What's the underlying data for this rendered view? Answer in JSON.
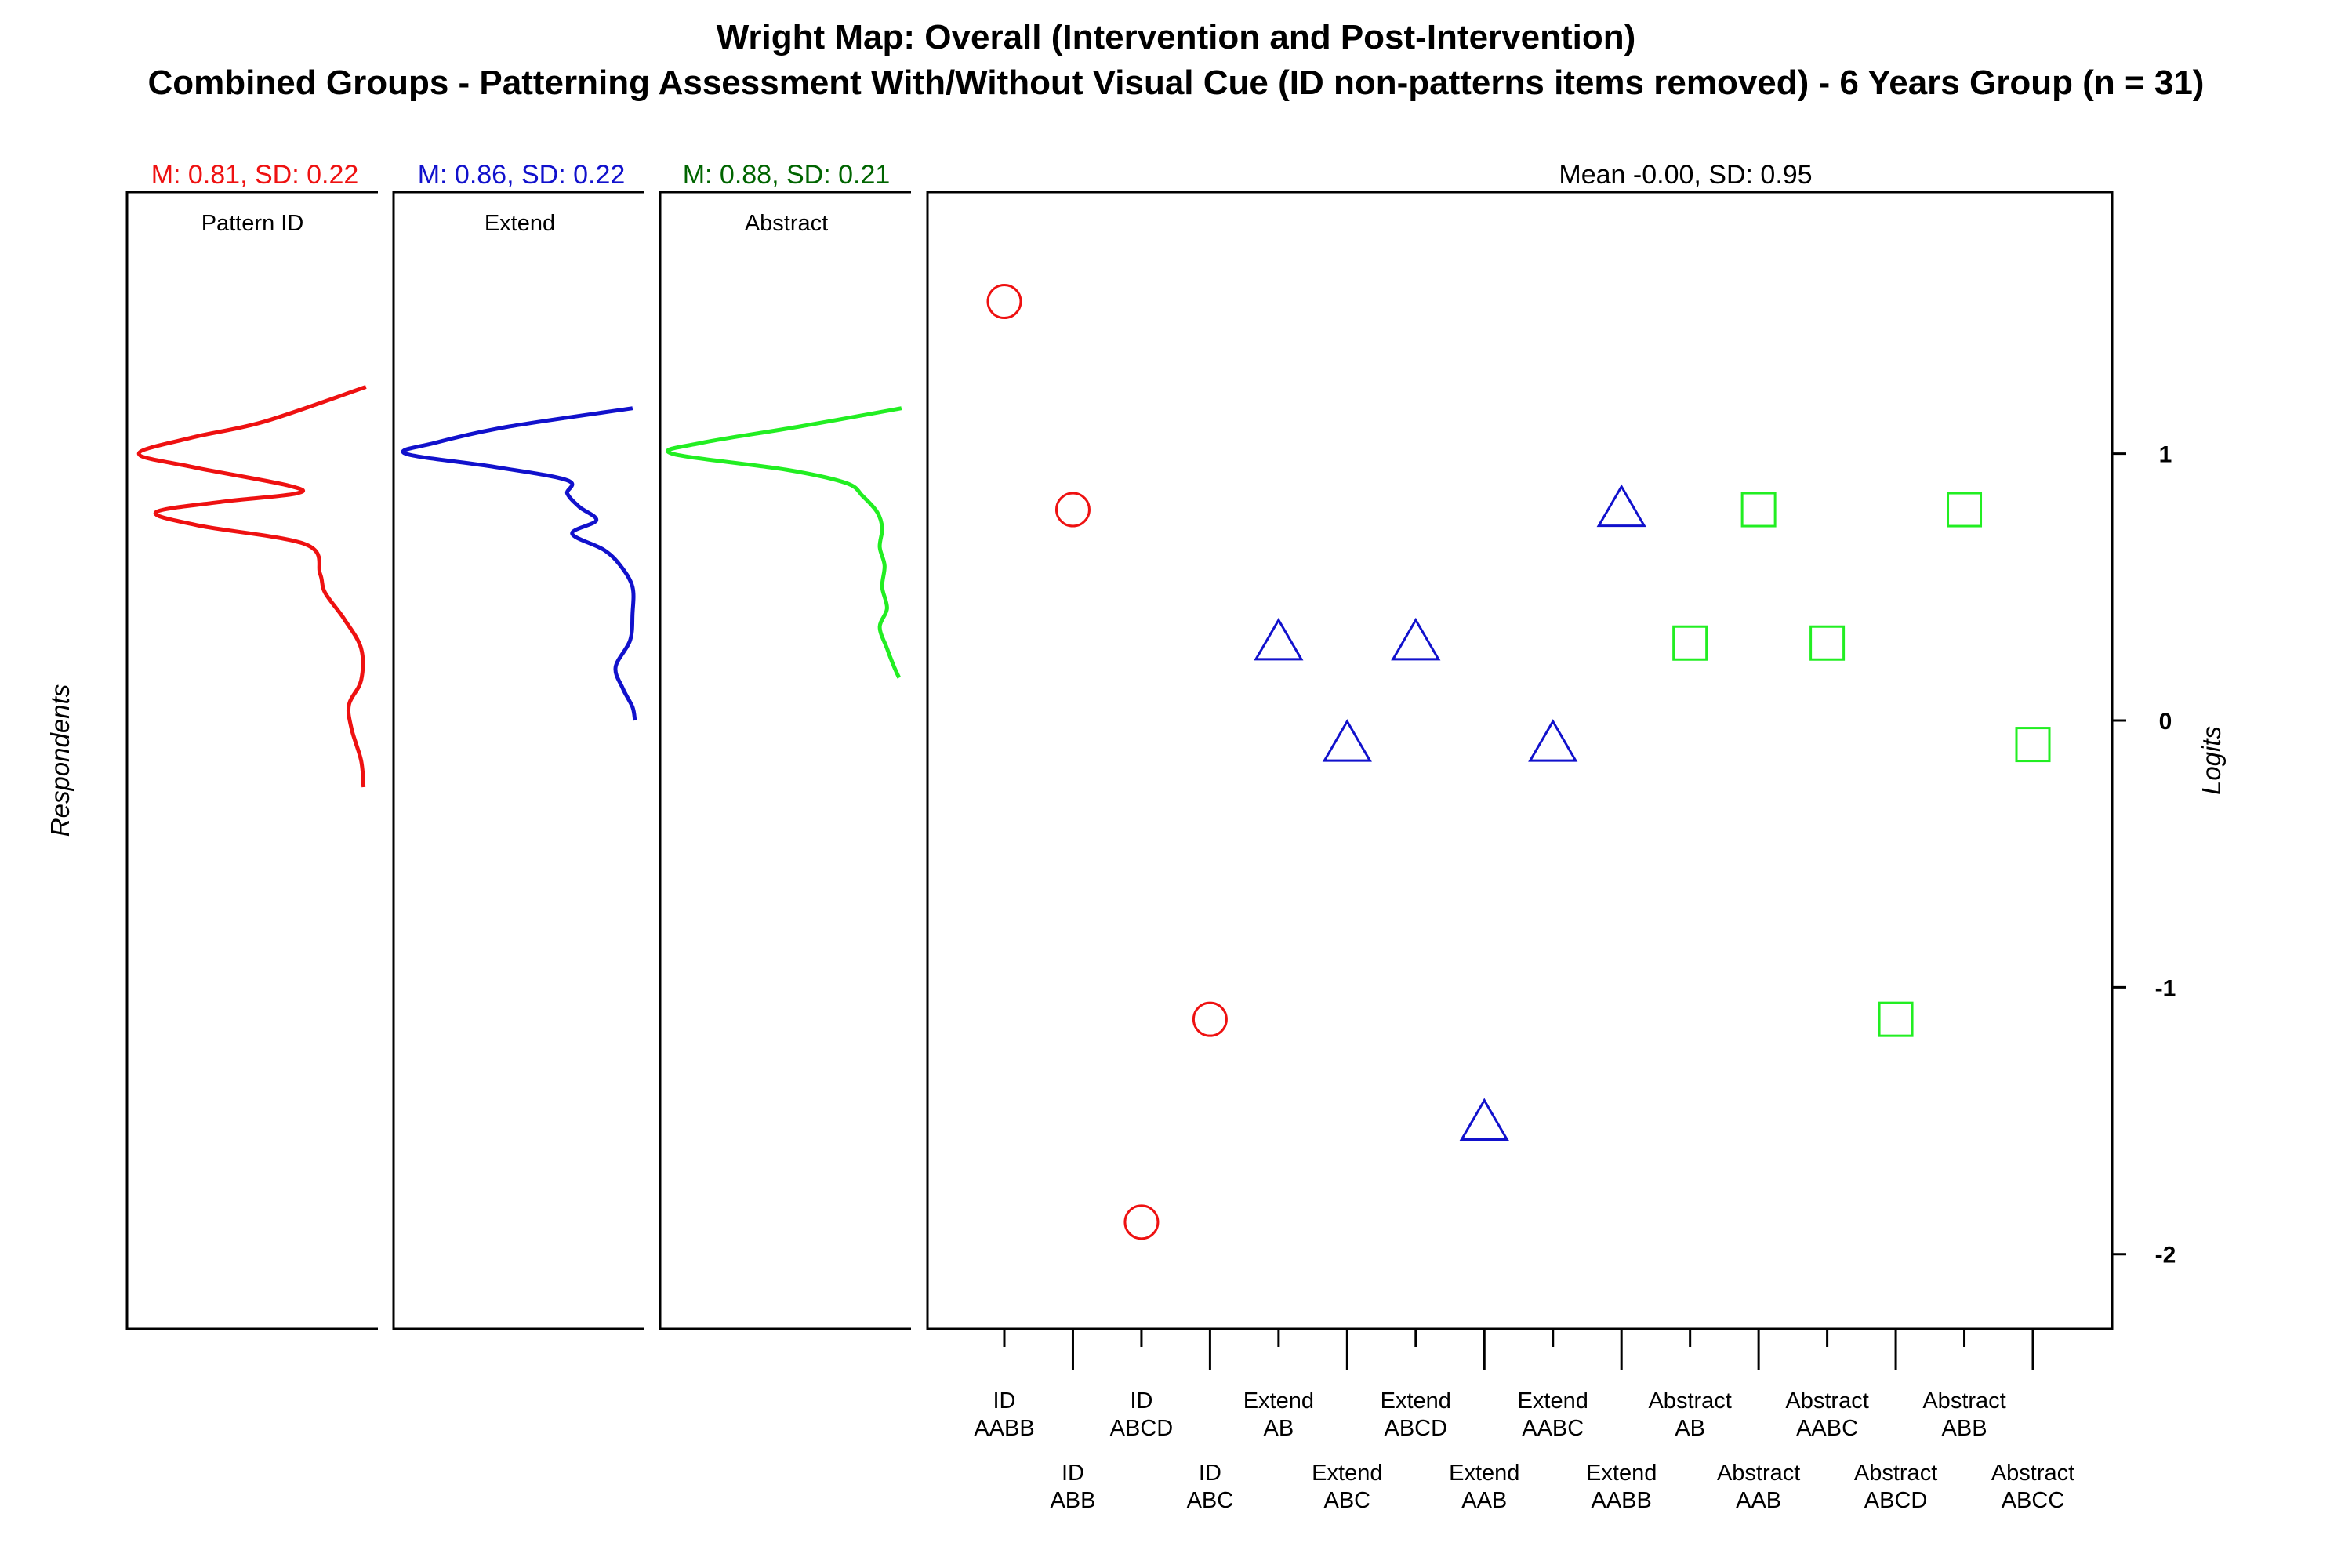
{
  "title_line1": "Wright Map: Overall (Intervention and Post-Intervention)",
  "title_line2": "Combined Groups - Patterning Assessment With/Without Visual Cue (ID non-patterns items removed) - 6 Years Group (n = 31)",
  "left_axis_title": "Respondents",
  "right_axis_title": "Logits",
  "item_panel_stat": "Mean -0.00, SD: 0.95",
  "colors": {
    "red": "#ee1111",
    "blue": "#1111cc",
    "green": "#22ee22",
    "darkgreen": "#006400"
  },
  "panels": [
    {
      "label": "Pattern ID",
      "stat": "M: 0.81, SD: 0.22",
      "color": "#ee1111",
      "stat_color": "#ee1111"
    },
    {
      "label": "Extend",
      "stat": "M: 0.86, SD: 0.22",
      "color": "#1111cc",
      "stat_color": "#1111cc"
    },
    {
      "label": "Abstract",
      "stat": "M: 0.88, SD: 0.21",
      "color": "#22ee22",
      "stat_color": "#006400"
    }
  ],
  "chart_data": {
    "type": "scatter",
    "ylabel": "Logits",
    "ylim": [
      -2.28,
      1.98
    ],
    "yticks": [
      -2,
      -1,
      0,
      1
    ],
    "items": [
      {
        "label": [
          "ID",
          "AABB"
        ],
        "group": "Pattern ID",
        "marker": "circle",
        "logit": 1.57
      },
      {
        "label": [
          "ID",
          "ABB"
        ],
        "group": "Pattern ID",
        "marker": "circle",
        "logit": 0.79
      },
      {
        "label": [
          "ID",
          "ABCD"
        ],
        "group": "Pattern ID",
        "marker": "circle",
        "logit": -1.88
      },
      {
        "label": [
          "ID",
          "ABC"
        ],
        "group": "Pattern ID",
        "marker": "circle",
        "logit": -1.12
      },
      {
        "label": [
          "Extend",
          "AB"
        ],
        "group": "Extend",
        "marker": "triangle",
        "logit": 0.3
      },
      {
        "label": [
          "Extend",
          "ABC"
        ],
        "group": "Extend",
        "marker": "triangle",
        "logit": -0.08
      },
      {
        "label": [
          "Extend",
          "ABCD"
        ],
        "group": "Extend",
        "marker": "triangle",
        "logit": 0.3
      },
      {
        "label": [
          "Extend",
          "AAB"
        ],
        "group": "Extend",
        "marker": "triangle",
        "logit": -1.5
      },
      {
        "label": [
          "Extend",
          "AABC"
        ],
        "group": "Extend",
        "marker": "triangle",
        "logit": -0.08
      },
      {
        "label": [
          "Extend",
          "AABB"
        ],
        "group": "Extend",
        "marker": "triangle",
        "logit": 0.8
      },
      {
        "label": [
          "Abstract",
          "AB"
        ],
        "group": "Abstract",
        "marker": "square",
        "logit": 0.29
      },
      {
        "label": [
          "Abstract",
          "AAB"
        ],
        "group": "Abstract",
        "marker": "square",
        "logit": 0.79
      },
      {
        "label": [
          "Abstract",
          "AABC"
        ],
        "group": "Abstract",
        "marker": "square",
        "logit": 0.29
      },
      {
        "label": [
          "Abstract",
          "ABCD"
        ],
        "group": "Abstract",
        "marker": "square",
        "logit": -1.12
      },
      {
        "label": [
          "Abstract",
          "ABB"
        ],
        "group": "Abstract",
        "marker": "square",
        "logit": 0.79
      },
      {
        "label": [
          "Abstract",
          "ABCC"
        ],
        "group": "Abstract",
        "marker": "square",
        "logit": -0.09
      }
    ],
    "person_densities": [
      {
        "group": "Pattern ID",
        "points": [
          [
            1.25,
            0.03
          ],
          [
            1.12,
            0.45
          ],
          [
            1.06,
            0.75
          ],
          [
            1.0,
            0.97
          ],
          [
            0.95,
            0.75
          ],
          [
            0.88,
            0.35
          ],
          [
            0.85,
            0.32
          ],
          [
            0.82,
            0.62
          ],
          [
            0.78,
            0.9
          ],
          [
            0.73,
            0.72
          ],
          [
            0.66,
            0.28
          ],
          [
            0.55,
            0.22
          ],
          [
            0.48,
            0.2
          ],
          [
            0.38,
            0.12
          ],
          [
            0.27,
            0.05
          ],
          [
            0.15,
            0.05
          ],
          [
            0.06,
            0.1
          ],
          [
            -0.03,
            0.09
          ],
          [
            -0.15,
            0.05
          ],
          [
            -0.25,
            0.04
          ]
        ]
      },
      {
        "group": "Extend",
        "points": [
          [
            1.17,
            0.03
          ],
          [
            1.1,
            0.55
          ],
          [
            1.04,
            0.85
          ],
          [
            1.0,
            0.97
          ],
          [
            0.95,
            0.6
          ],
          [
            0.9,
            0.3
          ],
          [
            0.85,
            0.3
          ],
          [
            0.8,
            0.25
          ],
          [
            0.75,
            0.18
          ],
          [
            0.7,
            0.28
          ],
          [
            0.64,
            0.15
          ],
          [
            0.58,
            0.08
          ],
          [
            0.5,
            0.03
          ],
          [
            0.4,
            0.03
          ],
          [
            0.3,
            0.04
          ],
          [
            0.2,
            0.1
          ],
          [
            0.12,
            0.07
          ],
          [
            0.05,
            0.03
          ],
          [
            0.0,
            0.02
          ]
        ]
      },
      {
        "group": "Abstract",
        "points": [
          [
            1.17,
            0.02
          ],
          [
            1.1,
            0.45
          ],
          [
            1.04,
            0.85
          ],
          [
            1.0,
            0.97
          ],
          [
            0.94,
            0.5
          ],
          [
            0.89,
            0.25
          ],
          [
            0.84,
            0.18
          ],
          [
            0.78,
            0.12
          ],
          [
            0.72,
            0.1
          ],
          [
            0.65,
            0.11
          ],
          [
            0.58,
            0.09
          ],
          [
            0.5,
            0.1
          ],
          [
            0.42,
            0.08
          ],
          [
            0.35,
            0.11
          ],
          [
            0.27,
            0.08
          ],
          [
            0.2,
            0.05
          ],
          [
            0.16,
            0.03
          ]
        ]
      }
    ]
  }
}
